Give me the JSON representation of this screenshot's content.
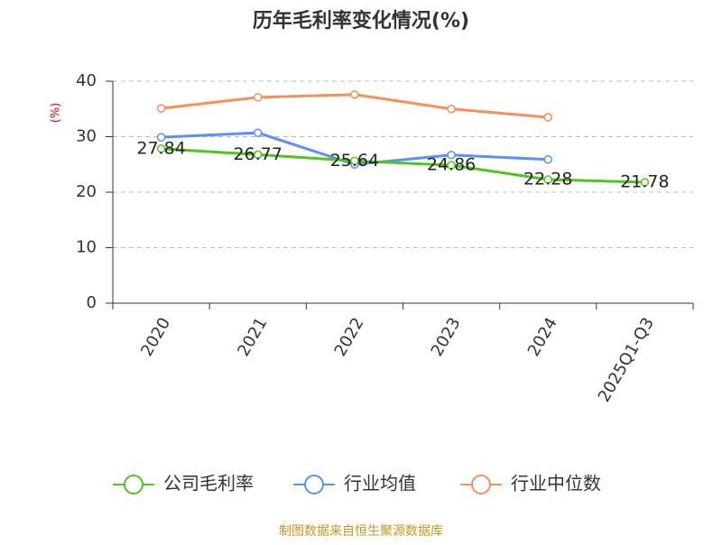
{
  "chart_data": {
    "type": "line",
    "title": "历年毛利率变化情况(%)",
    "y_label": "(%)",
    "categories": [
      "2020",
      "2021",
      "2022",
      "2023",
      "2024",
      "2025Q1-Q3"
    ],
    "series": [
      {
        "name": "公司毛利率",
        "color": "#52c41a",
        "values": [
          27.84,
          26.77,
          25.64,
          24.86,
          22.28,
          21.78
        ],
        "show_labels": true
      },
      {
        "name": "行业均值",
        "color": "#5b8ff9",
        "values": [
          29.9,
          30.7,
          25.0,
          26.7,
          25.9,
          null
        ],
        "show_labels": false
      },
      {
        "name": "行业中位数",
        "color": "#f6905a",
        "values": [
          35.1,
          37.1,
          37.6,
          35.0,
          33.5,
          null
        ],
        "show_labels": false
      }
    ],
    "ylim": [
      0,
      40
    ],
    "yticks": [
      0,
      10,
      20,
      30,
      40
    ],
    "grid": true,
    "source": "制图数据来自恒生聚源数据库"
  }
}
